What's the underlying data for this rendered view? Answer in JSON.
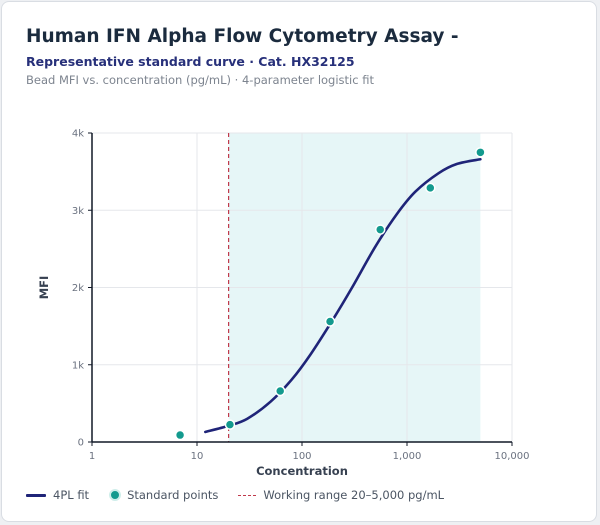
{
  "header": {
    "title": "Human IFN Alpha Flow Cytometry Assay -",
    "subtitle": "Representative standard curve · Cat. HX32125",
    "caption": "Bead MFI vs. concentration (pg/mL) · 4-parameter logistic fit"
  },
  "chart_data": {
    "type": "scatter",
    "xlabel": "Concentration",
    "ylabel": "MFI",
    "x_scale": "log",
    "xlim": [
      1,
      10000
    ],
    "ylim": [
      0,
      4000
    ],
    "x_ticks": [
      1,
      10,
      100,
      1000,
      10000
    ],
    "x_tick_labels": [
      "1",
      "10",
      "100",
      "1,000",
      "10,000"
    ],
    "y_ticks": [
      0,
      1000,
      2000,
      3000,
      4000
    ],
    "y_tick_labels": [
      "0",
      "1k",
      "2k",
      "3k",
      "4k"
    ],
    "grid": true,
    "legend_position": "bottom",
    "series": [
      {
        "name": "Standard points",
        "kind": "points",
        "color": "#139a8e",
        "x": [
          6.9,
          20.6,
          62,
          185,
          556,
          1667,
          5000
        ],
        "y": [
          90,
          225,
          660,
          1560,
          2750,
          3290,
          3750
        ]
      },
      {
        "name": "4PL fit",
        "kind": "line",
        "color": "#1f2478",
        "x": [
          12,
          20,
          30,
          50,
          80,
          120,
          200,
          300,
          500,
          800,
          1200,
          2000,
          3000,
          5000
        ],
        "y": [
          130,
          210,
          300,
          520,
          810,
          1130,
          1600,
          2000,
          2530,
          2950,
          3240,
          3480,
          3600,
          3660
        ]
      }
    ],
    "working_range": {
      "label": "Working range 20–5,000 pg/mL",
      "low": 20,
      "high": 5000,
      "line_color": "#c0394b",
      "fill_color": "#e6f6f7"
    }
  },
  "legend": {
    "fit_label": "4PL fit",
    "points_label": "Standard points",
    "range_label": "Working range 20–5,000 pg/mL"
  }
}
